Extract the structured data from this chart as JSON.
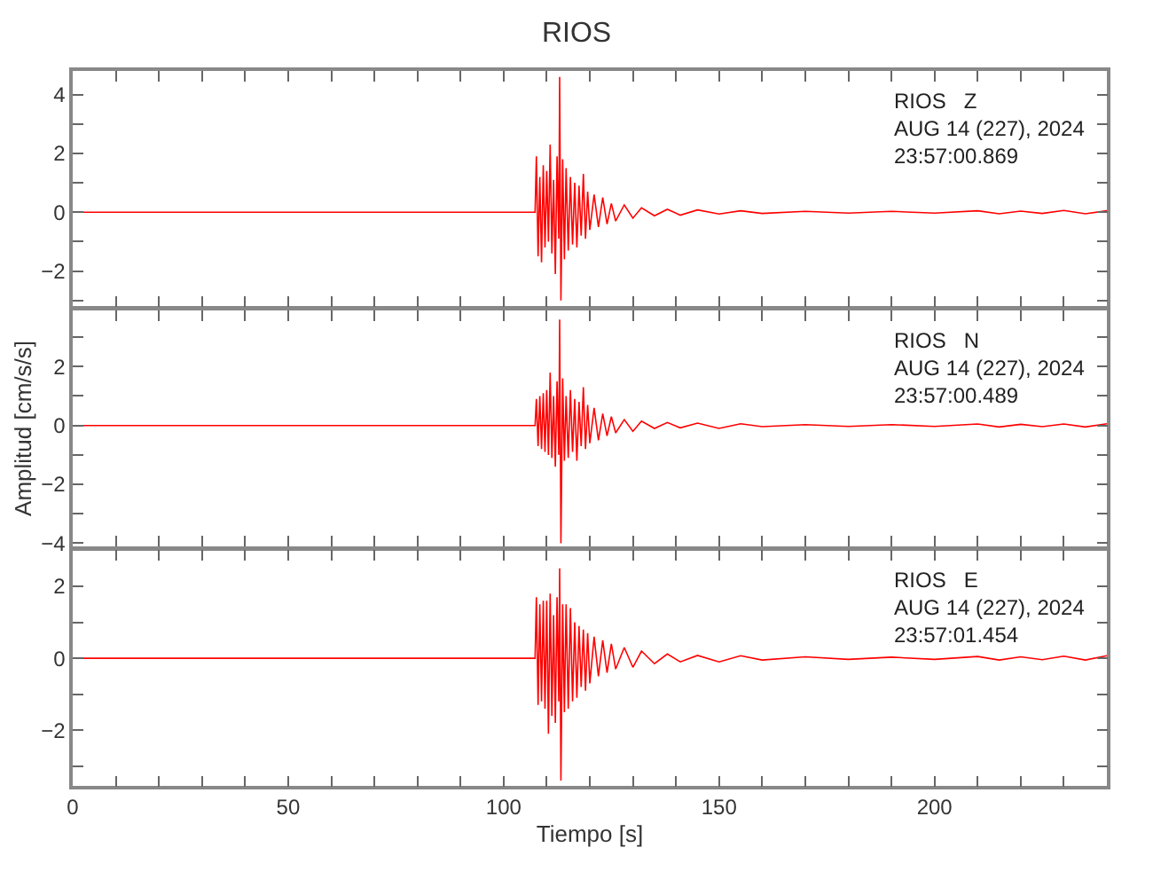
{
  "chart_data": [
    {
      "type": "line",
      "title": "RIOS",
      "tick_labels": "y",
      "x": [
        0,
        20,
        40,
        60,
        80,
        100,
        107.3,
        107.6,
        108.0,
        108.4,
        108.8,
        109.2,
        109.6,
        110.0,
        110.4,
        110.8,
        111.2,
        111.6,
        112.0,
        112.4,
        112.8,
        113.0,
        113.3,
        113.7,
        114.1,
        114.5,
        115,
        115.5,
        116,
        116.5,
        117,
        117.5,
        118,
        118.5,
        119,
        119.5,
        120,
        121,
        122,
        123,
        124,
        125,
        126,
        128,
        130,
        132,
        135,
        138,
        141,
        145,
        150,
        155,
        160,
        170,
        180,
        190,
        200,
        210,
        215,
        220,
        225,
        230,
        235,
        240
      ],
      "series": [
        {
          "color": "#ff0000",
          "values": [
            0,
            0,
            0,
            0,
            0,
            0,
            0,
            1.9,
            -1.5,
            1.2,
            -1.7,
            1.6,
            -1.2,
            1.4,
            -1.0,
            2.3,
            -1.4,
            1.1,
            -2.1,
            1.9,
            -0.9,
            4.6,
            -3.0,
            1.8,
            -1.6,
            1.5,
            -1.3,
            1.2,
            -1.1,
            1.0,
            -1.2,
            0.9,
            -0.8,
            1.3,
            -0.9,
            0.7,
            -0.6,
            0.6,
            -0.5,
            0.5,
            -0.4,
            0.3,
            -0.3,
            0.25,
            -0.2,
            0.15,
            -0.12,
            0.1,
            -0.1,
            0.08,
            -0.06,
            0.05,
            -0.04,
            0.03,
            -0.03,
            0.03,
            -0.03,
            0.05,
            -0.05,
            0.04,
            -0.04,
            0.06,
            -0.05,
            0.05
          ]
        }
      ],
      "xlim": [
        0,
        240
      ],
      "xticks": [
        0,
        {
          "value": 10,
          "label": null
        },
        {
          "value": 20,
          "label": null
        },
        {
          "value": 30,
          "label": null
        },
        {
          "value": 40,
          "label": null
        },
        50,
        {
          "value": 60,
          "label": null
        },
        {
          "value": 70,
          "label": null
        },
        {
          "value": 80,
          "label": null
        },
        {
          "value": 90,
          "label": null
        },
        100,
        {
          "value": 110,
          "label": null
        },
        {
          "value": 120,
          "label": null
        },
        {
          "value": 130,
          "label": null
        },
        {
          "value": 140,
          "label": null
        },
        150,
        {
          "value": 160,
          "label": null
        },
        {
          "value": 170,
          "label": null
        },
        {
          "value": 180,
          "label": null
        },
        {
          "value": 190,
          "label": null
        },
        200,
        {
          "value": 210,
          "label": null
        },
        {
          "value": 220,
          "label": null
        },
        {
          "value": 230,
          "label": null
        },
        {
          "value": 240,
          "label": null
        }
      ],
      "ylim": [
        -3.2,
        4.8
      ],
      "yticks": [
        {
          "value": -3,
          "label": null
        },
        -2,
        {
          "value": -1,
          "label": null
        },
        0,
        {
          "value": 1,
          "label": null
        },
        2,
        {
          "value": 3,
          "label": null
        },
        4
      ],
      "annotations": [
        "RIOS   Z\nAUG 14 (227), 2024\n23:57:00.869"
      ]
    },
    {
      "type": "line",
      "ylabel": "Amplitud [cm/s/s]",
      "tick_labels": "y",
      "x": [
        0,
        20,
        40,
        60,
        80,
        100,
        107.3,
        107.6,
        108.0,
        108.4,
        108.8,
        109.2,
        109.6,
        110.0,
        110.4,
        110.8,
        111.2,
        111.6,
        112.0,
        112.4,
        112.8,
        113.0,
        113.3,
        113.7,
        114.1,
        114.5,
        115,
        115.5,
        116,
        116.5,
        117,
        117.5,
        118,
        118.5,
        119,
        119.5,
        120,
        121,
        122,
        123,
        124,
        125,
        126,
        128,
        130,
        132,
        135,
        138,
        141,
        145,
        150,
        155,
        160,
        170,
        180,
        190,
        200,
        210,
        215,
        220,
        225,
        230,
        235,
        240
      ],
      "series": [
        {
          "color": "#ff0000",
          "values": [
            0,
            0,
            0,
            0,
            0,
            0,
            0,
            0.9,
            -0.7,
            1.0,
            -0.8,
            1.1,
            -0.9,
            1.2,
            -1.0,
            1.8,
            -1.1,
            1.0,
            -1.4,
            1.5,
            -1.0,
            3.6,
            -4.0,
            1.6,
            -1.2,
            1.0,
            -1.1,
            1.2,
            -0.9,
            0.9,
            -1.2,
            0.8,
            -0.7,
            1.3,
            -0.8,
            0.7,
            -0.6,
            0.6,
            -0.5,
            0.4,
            -0.35,
            0.3,
            -0.25,
            0.2,
            -0.2,
            0.15,
            -0.1,
            0.1,
            -0.08,
            0.08,
            -0.1,
            0.06,
            -0.04,
            0.03,
            -0.03,
            0.03,
            -0.03,
            0.05,
            -0.05,
            0.04,
            -0.04,
            0.05,
            -0.05,
            0.06
          ]
        }
      ],
      "xlim": [
        0,
        240
      ],
      "xticks": [
        0,
        {
          "value": 10,
          "label": null
        },
        {
          "value": 20,
          "label": null
        },
        {
          "value": 30,
          "label": null
        },
        {
          "value": 40,
          "label": null
        },
        50,
        {
          "value": 60,
          "label": null
        },
        {
          "value": 70,
          "label": null
        },
        {
          "value": 80,
          "label": null
        },
        {
          "value": 90,
          "label": null
        },
        100,
        {
          "value": 110,
          "label": null
        },
        {
          "value": 120,
          "label": null
        },
        {
          "value": 130,
          "label": null
        },
        {
          "value": 140,
          "label": null
        },
        150,
        {
          "value": 160,
          "label": null
        },
        {
          "value": 170,
          "label": null
        },
        {
          "value": 180,
          "label": null
        },
        {
          "value": 190,
          "label": null
        },
        200,
        {
          "value": 210,
          "label": null
        },
        {
          "value": 220,
          "label": null
        },
        {
          "value": 230,
          "label": null
        },
        {
          "value": 240,
          "label": null
        }
      ],
      "ylim": [
        -4.1,
        3.9
      ],
      "yticks": [
        -4,
        {
          "value": -3,
          "label": null
        },
        -2,
        {
          "value": -1,
          "label": null
        },
        0,
        {
          "value": 1,
          "label": null
        },
        2,
        {
          "value": 3,
          "label": null
        }
      ],
      "annotations": [
        "RIOS   N\nAUG 14 (227), 2024\n23:57:00.489"
      ]
    },
    {
      "type": "line",
      "xlabel": "Tiempo [s]",
      "x": [
        0,
        20,
        40,
        60,
        80,
        100,
        107.3,
        107.6,
        108.0,
        108.4,
        108.8,
        109.2,
        109.6,
        110.0,
        110.4,
        110.8,
        111.2,
        111.6,
        112.0,
        112.4,
        112.8,
        113.0,
        113.3,
        113.7,
        114.1,
        114.5,
        115,
        115.5,
        116,
        116.5,
        117,
        117.5,
        118,
        118.5,
        119,
        119.5,
        120,
        121,
        122,
        123,
        124,
        125,
        126,
        128,
        130,
        132,
        135,
        138,
        141,
        145,
        150,
        155,
        160,
        170,
        180,
        190,
        200,
        210,
        215,
        220,
        225,
        230,
        235,
        240
      ],
      "series": [
        {
          "color": "#ff0000",
          "values": [
            0,
            0,
            0,
            0,
            0,
            0,
            0,
            1.7,
            -1.3,
            1.5,
            -1.2,
            1.6,
            -1.4,
            1.6,
            -2.1,
            1.8,
            -1.6,
            1.2,
            -1.8,
            1.7,
            -1.2,
            2.5,
            -3.4,
            1.5,
            -1.5,
            1.5,
            -1.4,
            1.4,
            -1.2,
            1.0,
            -1.1,
            0.9,
            -0.8,
            0.8,
            -0.9,
            0.7,
            -0.7,
            0.6,
            -0.5,
            0.5,
            -0.4,
            0.4,
            -0.3,
            0.3,
            -0.25,
            0.2,
            -0.15,
            0.12,
            -0.1,
            0.08,
            -0.1,
            0.07,
            -0.05,
            0.04,
            -0.03,
            0.03,
            -0.03,
            0.05,
            -0.05,
            0.04,
            -0.04,
            0.06,
            -0.05,
            0.07
          ]
        }
      ],
      "xlim": [
        0,
        240
      ],
      "xticks": [
        0,
        {
          "value": 10,
          "label": null
        },
        {
          "value": 20,
          "label": null
        },
        {
          "value": 30,
          "label": null
        },
        {
          "value": 40,
          "label": null
        },
        50,
        {
          "value": 60,
          "label": null
        },
        {
          "value": 70,
          "label": null
        },
        {
          "value": 80,
          "label": null
        },
        {
          "value": 90,
          "label": null
        },
        100,
        {
          "value": 110,
          "label": null
        },
        {
          "value": 120,
          "label": null
        },
        {
          "value": 130,
          "label": null
        },
        {
          "value": 140,
          "label": null
        },
        150,
        {
          "value": 160,
          "label": null
        },
        {
          "value": 170,
          "label": null
        },
        {
          "value": 180,
          "label": null
        },
        {
          "value": 190,
          "label": null
        },
        200,
        {
          "value": 210,
          "label": null
        },
        {
          "value": 220,
          "label": null
        },
        {
          "value": 230,
          "label": null
        },
        {
          "value": 240,
          "label": null
        }
      ],
      "ylim": [
        -3.55,
        3.0
      ],
      "yticks": [
        {
          "value": -3,
          "label": null
        },
        -2,
        {
          "value": -1,
          "label": null
        },
        0,
        {
          "value": 1,
          "label": null
        },
        2
      ],
      "annotations": [
        "RIOS   E\nAUG 14 (227), 2024\n23:57:01.454"
      ]
    }
  ]
}
